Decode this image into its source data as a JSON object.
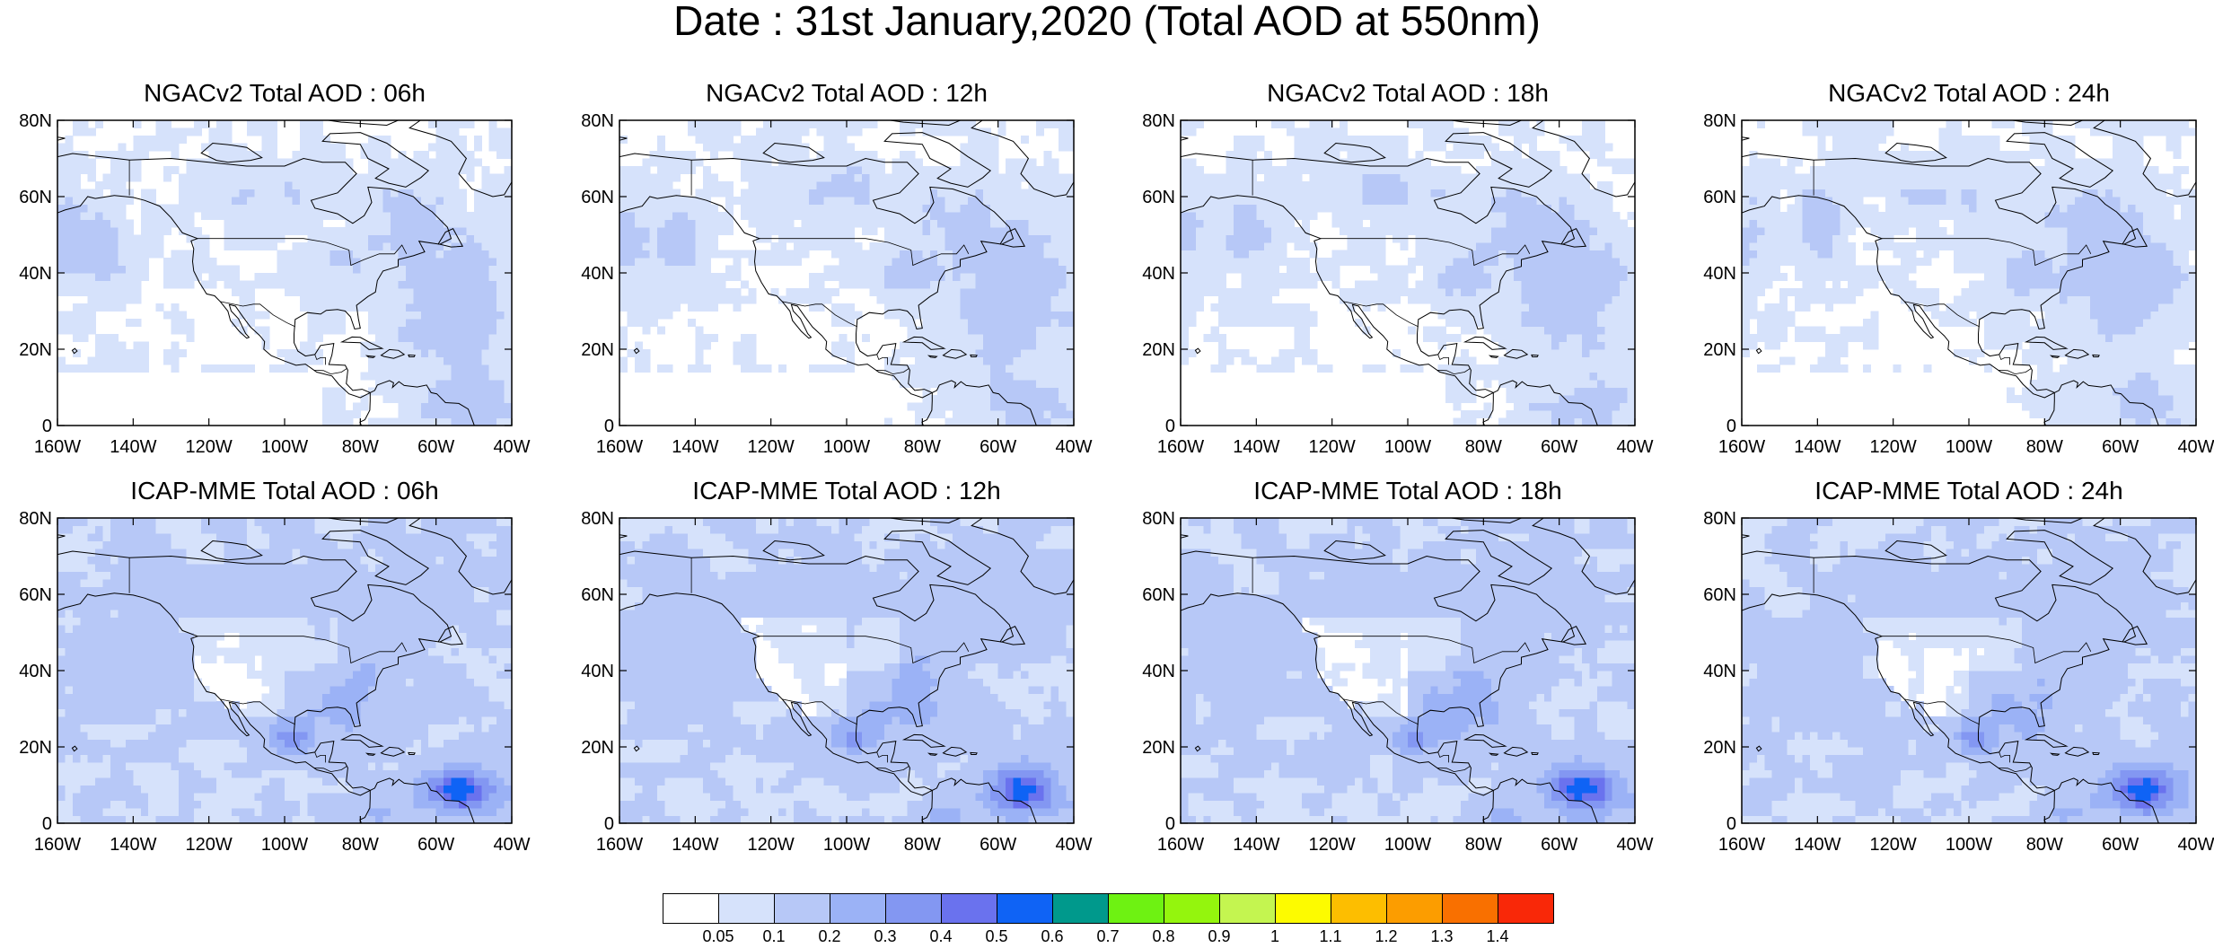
{
  "figure": {
    "title": "Date : 31st January,2020 (Total AOD at 550nm)"
  },
  "axes": {
    "x_ticks": [
      "160W",
      "140W",
      "120W",
      "100W",
      "80W",
      "60W",
      "40W"
    ],
    "x_values": [
      -160,
      -140,
      -120,
      -100,
      -80,
      -60,
      -40
    ],
    "y_ticks": [
      "0",
      "20N",
      "40N",
      "60N",
      "80N"
    ],
    "y_values": [
      0,
      20,
      40,
      60,
      80
    ],
    "lon_range": [
      -160,
      -40
    ],
    "lat_range": [
      0,
      80
    ]
  },
  "panels": [
    {
      "id": "ngac-06h",
      "title": "NGACv2 Total AOD : 06h",
      "model": "NGACv2",
      "hour": "06h"
    },
    {
      "id": "ngac-12h",
      "title": "NGACv2 Total AOD : 12h",
      "model": "NGACv2",
      "hour": "12h"
    },
    {
      "id": "ngac-18h",
      "title": "NGACv2 Total AOD : 18h",
      "model": "NGACv2",
      "hour": "18h"
    },
    {
      "id": "ngac-24h",
      "title": "NGACv2 Total AOD : 24h",
      "model": "NGACv2",
      "hour": "24h"
    },
    {
      "id": "icap-06h",
      "title": "ICAP-MME Total AOD : 06h",
      "model": "ICAP-MME",
      "hour": "06h"
    },
    {
      "id": "icap-12h",
      "title": "ICAP-MME Total AOD : 12h",
      "model": "ICAP-MME",
      "hour": "12h"
    },
    {
      "id": "icap-18h",
      "title": "ICAP-MME Total AOD : 18h",
      "model": "ICAP-MME",
      "hour": "18h"
    },
    {
      "id": "icap-24h",
      "title": "ICAP-MME Total AOD : 24h",
      "model": "ICAP-MME",
      "hour": "24h"
    }
  ],
  "colorbar": {
    "levels": [
      "0.05",
      "0.1",
      "0.2",
      "0.3",
      "0.4",
      "0.5",
      "0.6",
      "0.7",
      "0.8",
      "0.9",
      "1",
      "1.1",
      "1.2",
      "1.3",
      "1.4"
    ],
    "colors": [
      "#ffffff",
      "#d6e2fb",
      "#b7c8f7",
      "#9bb2f6",
      "#8397f2",
      "#6a72ee",
      "#0f63f5",
      "#00998c",
      "#6ef212",
      "#94f50d",
      "#c4f550",
      "#fdfb00",
      "#fdbe00",
      "#fc9d00",
      "#f97000",
      "#f92808"
    ]
  }
}
